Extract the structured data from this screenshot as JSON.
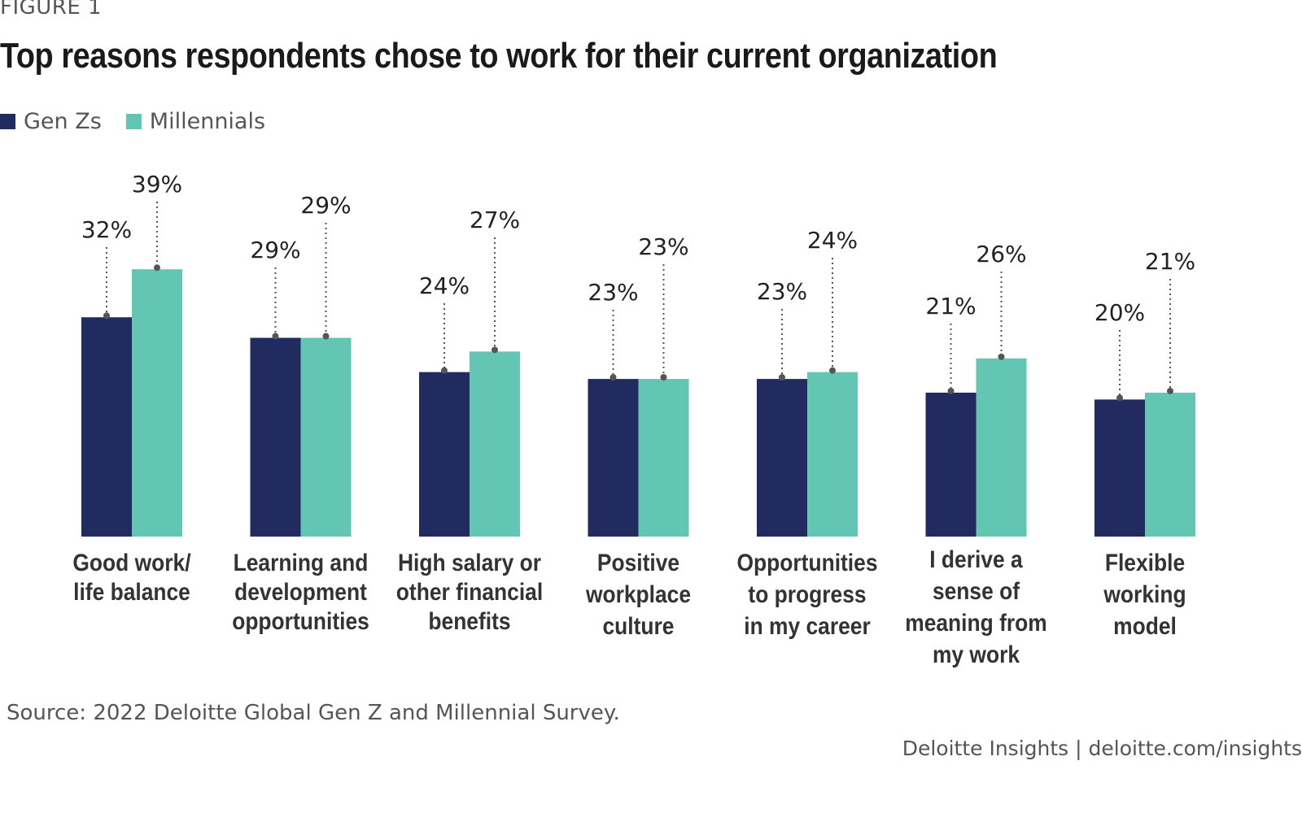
{
  "figure_label": "FIGURE 1",
  "source": "Source: 2022 Deloitte Global Gen Z and Millennial Survey.",
  "credit": "Deloitte Insights | deloitte.com/insights",
  "colors": {
    "genz": "#222b5f",
    "millennials": "#62c6b2",
    "dot": "#555555"
  },
  "chart_data": {
    "type": "bar",
    "title": "Top reasons respondents chose to work for their current organization",
    "legend_position": "top-left",
    "grid": false,
    "ylim": [
      0,
      45
    ],
    "categories": [
      [
        "Good work/",
        "life balance"
      ],
      [
        "Learning and",
        "development",
        "opportunities"
      ],
      [
        "High salary or",
        "other financial",
        "benefits"
      ],
      [
        "Positive",
        "workplace",
        "culture"
      ],
      [
        "Opportunities",
        "to progress",
        "in my career"
      ],
      [
        "I derive a",
        "sense of",
        "meaning from",
        "my work"
      ],
      [
        "Flexible",
        "working",
        "model"
      ]
    ],
    "series": [
      {
        "name": "Gen Zs",
        "values": [
          32,
          29,
          24,
          23,
          23,
          21,
          20
        ],
        "labels": [
          "32%",
          "29%",
          "24%",
          "23%",
          "23%",
          "21%",
          "20%"
        ]
      },
      {
        "name": "Millennials",
        "values": [
          39,
          29,
          27,
          23,
          24,
          26,
          21
        ],
        "labels": [
          "39%",
          "29%",
          "27%",
          "23%",
          "24%",
          "26%",
          "21%"
        ]
      }
    ]
  }
}
